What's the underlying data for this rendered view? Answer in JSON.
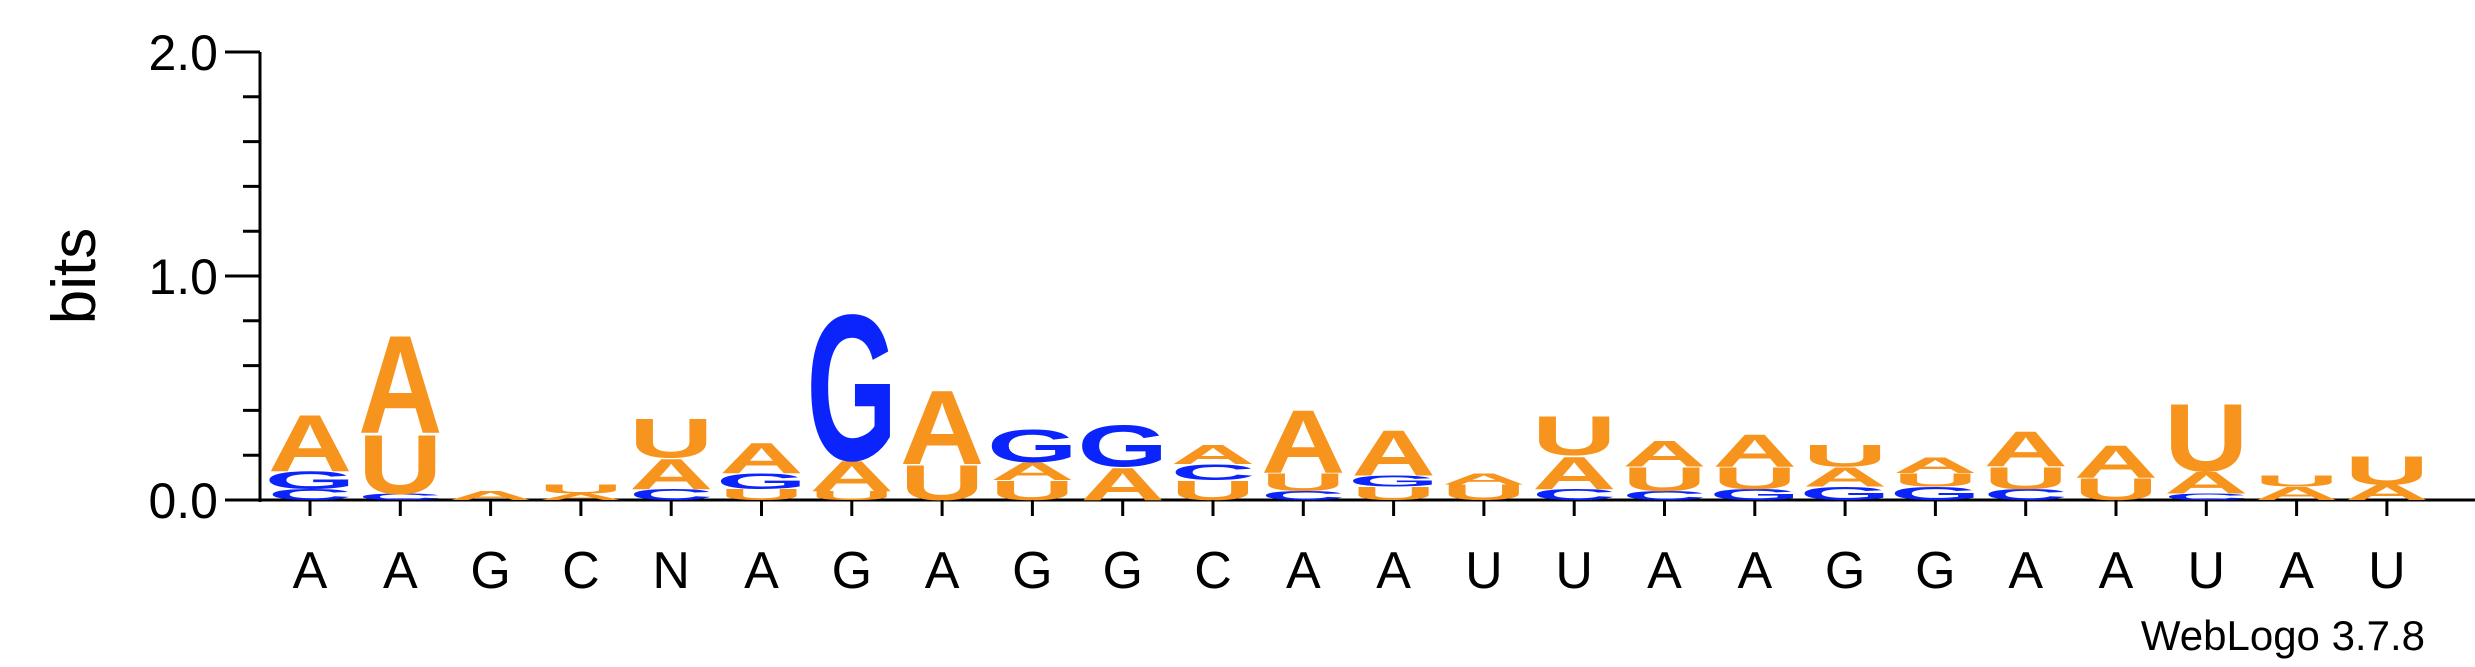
{
  "chart_data": {
    "type": "sequence-logo",
    "ylabel": "bits",
    "ylim": [
      0,
      2.0
    ],
    "yticks": [
      "0.0",
      "1.0",
      "2.0"
    ],
    "credit": "WebLogo 3.7.8",
    "colors": {
      "A": "#f7941d",
      "U": "#f7941d",
      "G": "#0b24fb",
      "C": "#0b24fb"
    },
    "positions": [
      {
        "label": "A",
        "stack": [
          [
            "C",
            0.05
          ],
          [
            "G",
            0.08
          ],
          [
            "A",
            0.26
          ]
        ]
      },
      {
        "label": "A",
        "stack": [
          [
            "C",
            0.03
          ],
          [
            "U",
            0.27
          ],
          [
            "A",
            0.45
          ]
        ]
      },
      {
        "label": "G",
        "stack": [
          [
            "A",
            0.04
          ]
        ]
      },
      {
        "label": "C",
        "stack": [
          [
            "A",
            0.03
          ],
          [
            "U",
            0.04
          ]
        ]
      },
      {
        "label": "N",
        "stack": [
          [
            "C",
            0.05
          ],
          [
            "A",
            0.14
          ],
          [
            "U",
            0.18
          ]
        ]
      },
      {
        "label": "A",
        "stack": [
          [
            "U",
            0.05
          ],
          [
            "G",
            0.07
          ],
          [
            "A",
            0.14
          ]
        ]
      },
      {
        "label": "G",
        "stack": [
          [
            "U",
            0.04
          ],
          [
            "A",
            0.14
          ],
          [
            "G",
            0.67
          ]
        ]
      },
      {
        "label": "A",
        "stack": [
          [
            "U",
            0.16
          ],
          [
            "A",
            0.34
          ]
        ]
      },
      {
        "label": "G",
        "stack": [
          [
            "U",
            0.09
          ],
          [
            "A",
            0.08
          ],
          [
            "G",
            0.15
          ]
        ]
      },
      {
        "label": "G",
        "stack": [
          [
            "A",
            0.15
          ],
          [
            "G",
            0.19
          ]
        ]
      },
      {
        "label": "C",
        "stack": [
          [
            "U",
            0.09
          ],
          [
            "C",
            0.07
          ],
          [
            "A",
            0.09
          ]
        ]
      },
      {
        "label": "A",
        "stack": [
          [
            "C",
            0.04
          ],
          [
            "U",
            0.08
          ],
          [
            "A",
            0.29
          ]
        ]
      },
      {
        "label": "A",
        "stack": [
          [
            "U",
            0.06
          ],
          [
            "G",
            0.05
          ],
          [
            "A",
            0.21
          ]
        ]
      },
      {
        "label": "U",
        "stack": [
          [
            "U",
            0.07
          ],
          [
            "A",
            0.05
          ]
        ]
      },
      {
        "label": "U",
        "stack": [
          [
            "C",
            0.05
          ],
          [
            "A",
            0.15
          ],
          [
            "U",
            0.18
          ]
        ]
      },
      {
        "label": "A",
        "stack": [
          [
            "C",
            0.04
          ],
          [
            "U",
            0.11
          ],
          [
            "A",
            0.12
          ]
        ]
      },
      {
        "label": "A",
        "stack": [
          [
            "G",
            0.05
          ],
          [
            "U",
            0.1
          ],
          [
            "A",
            0.15
          ]
        ]
      },
      {
        "label": "G",
        "stack": [
          [
            "G",
            0.06
          ],
          [
            "A",
            0.09
          ],
          [
            "U",
            0.1
          ]
        ]
      },
      {
        "label": "G",
        "stack": [
          [
            "G",
            0.06
          ],
          [
            "U",
            0.06
          ],
          [
            "A",
            0.07
          ]
        ]
      },
      {
        "label": "A",
        "stack": [
          [
            "C",
            0.05
          ],
          [
            "U",
            0.1
          ],
          [
            "A",
            0.16
          ]
        ]
      },
      {
        "label": "A",
        "stack": [
          [
            "U",
            0.1
          ],
          [
            "A",
            0.15
          ]
        ]
      },
      {
        "label": "U",
        "stack": [
          [
            "C",
            0.03
          ],
          [
            "A",
            0.1
          ],
          [
            "U",
            0.31
          ]
        ]
      },
      {
        "label": "A",
        "stack": [
          [
            "A",
            0.06
          ],
          [
            "U",
            0.05
          ]
        ]
      },
      {
        "label": "U",
        "stack": [
          [
            "A",
            0.07
          ],
          [
            "U",
            0.13
          ]
        ]
      }
    ]
  }
}
